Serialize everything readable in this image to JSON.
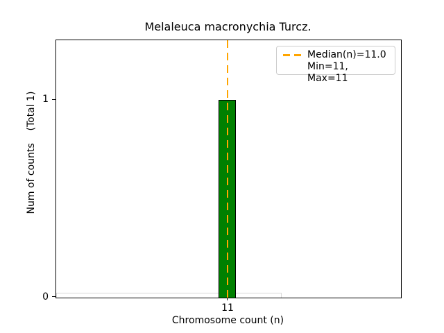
{
  "chart_data": {
    "type": "bar",
    "title": "Melaleuca macronychia Turcz.",
    "xlabel": "Chromosome count (n)",
    "ylabel": "Num of counts    (Total 1)",
    "categories": [
      "11"
    ],
    "values": [
      1
    ],
    "total_counts": 1,
    "xtick_labels": [
      "11"
    ],
    "ytick_labels": [
      "0",
      "1"
    ],
    "ylim": [
      0,
      1.3
    ],
    "grid": false,
    "bar_color": "#008000",
    "bar_edge_color": "#000000",
    "median": 11.0,
    "min": 11,
    "max": 11,
    "median_line_color": "#FFA500",
    "median_line_style": "dashed",
    "zero_bin_outline_color": "#d9d9d9",
    "legend": {
      "position": "upper right",
      "entries": [
        {
          "label": "Median(n)=11.0",
          "swatch": "orange-dashed-line"
        },
        {
          "label": "Min=11, Max=11",
          "swatch": "none"
        }
      ]
    }
  }
}
